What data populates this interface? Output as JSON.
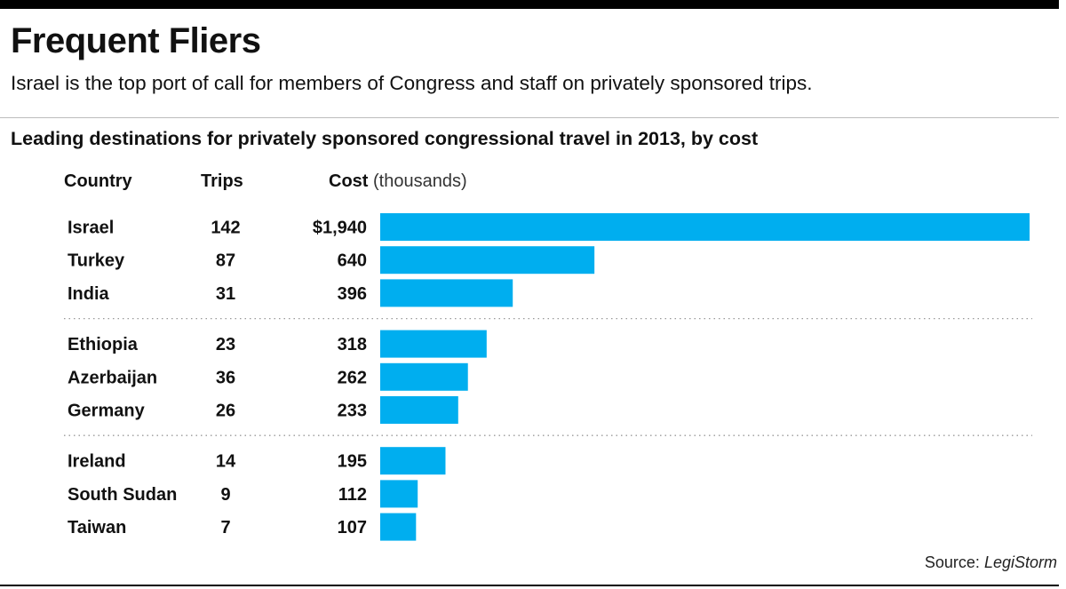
{
  "header": {
    "title": "Frequent Fliers",
    "dek": "Israel is the top port of call for members of Congress and staff on privately sponsored trips."
  },
  "columns": {
    "country": "Country",
    "trips": "Trips",
    "cost": "Cost",
    "cost_unit": "(thousands)"
  },
  "footer": {
    "source_label": "Source:",
    "source_name": "LegiStorm"
  },
  "colors": {
    "bar": "#00aeef",
    "divider": "#999999"
  },
  "chart_data": {
    "type": "bar",
    "orientation": "horizontal",
    "title": "Leading destinations for privately sponsored congressional travel in 2013, by cost",
    "categories": [
      "Israel",
      "Turkey",
      "India",
      "Ethiopia",
      "Azerbaijan",
      "Germany",
      "Ireland",
      "South Sudan",
      "Taiwan"
    ],
    "trips": [
      142,
      87,
      31,
      23,
      36,
      26,
      14,
      9,
      7
    ],
    "values": [
      1940,
      640,
      396,
      318,
      262,
      233,
      195,
      112,
      107
    ],
    "value_labels": [
      "$1,940",
      "640",
      "396",
      "318",
      "262",
      "233",
      "195",
      "112",
      "107"
    ],
    "groups": [
      3,
      3,
      3
    ],
    "xlim": [
      0,
      1940
    ],
    "grid": false,
    "legend": "none"
  }
}
